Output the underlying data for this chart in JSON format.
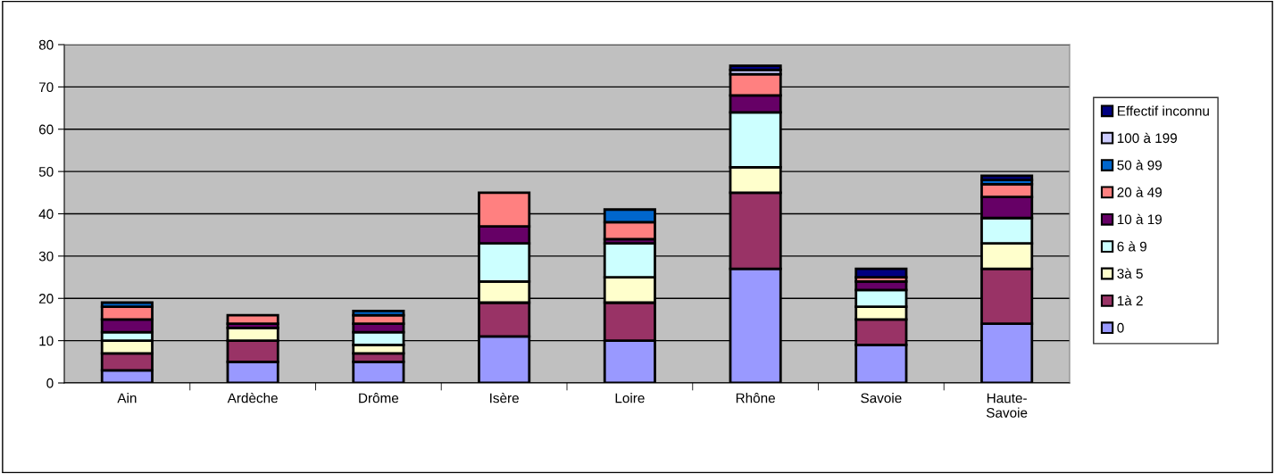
{
  "chart_data": {
    "type": "bar",
    "stacked": true,
    "categories": [
      "Ain",
      "Ardèche",
      "Drôme",
      "Isère",
      "Loire",
      "Rhône",
      "Savoie",
      "Haute-\nSavoie"
    ],
    "series": [
      {
        "name": "0",
        "color": "#9999ff",
        "values": [
          3,
          5,
          5,
          11,
          10,
          27,
          9,
          14
        ]
      },
      {
        "name": "1à 2",
        "color": "#993366",
        "values": [
          4,
          5,
          2,
          8,
          9,
          18,
          6,
          13
        ]
      },
      {
        "name": "3à 5",
        "color": "#ffffcc",
        "values": [
          3,
          3,
          2,
          5,
          6,
          6,
          3,
          6
        ]
      },
      {
        "name": "6 à 9",
        "color": "#ccffff",
        "values": [
          2,
          0,
          3,
          9,
          8,
          13,
          4,
          6
        ]
      },
      {
        "name": "10 à 19",
        "color": "#660066",
        "values": [
          3,
          1,
          2,
          4,
          1,
          4,
          2,
          5
        ]
      },
      {
        "name": "20 à 49",
        "color": "#ff8080",
        "values": [
          3,
          2,
          2,
          8,
          4,
          5,
          1,
          3
        ]
      },
      {
        "name": "50 à 99",
        "color": "#0066cc",
        "values": [
          1,
          0,
          1,
          0,
          3,
          0,
          0,
          1
        ]
      },
      {
        "name": "100 à 199",
        "color": "#ccccff",
        "values": [
          0,
          0,
          0,
          0,
          0,
          1,
          0,
          0
        ]
      },
      {
        "name": "Effectif inconnu",
        "color": "#000080",
        "values": [
          0,
          0,
          0,
          0,
          0,
          1,
          2,
          1
        ]
      }
    ],
    "ylim": [
      0,
      80
    ],
    "yticks": [
      0,
      10,
      20,
      30,
      40,
      50,
      60,
      70,
      80
    ],
    "grid": "y",
    "legend": "right"
  }
}
